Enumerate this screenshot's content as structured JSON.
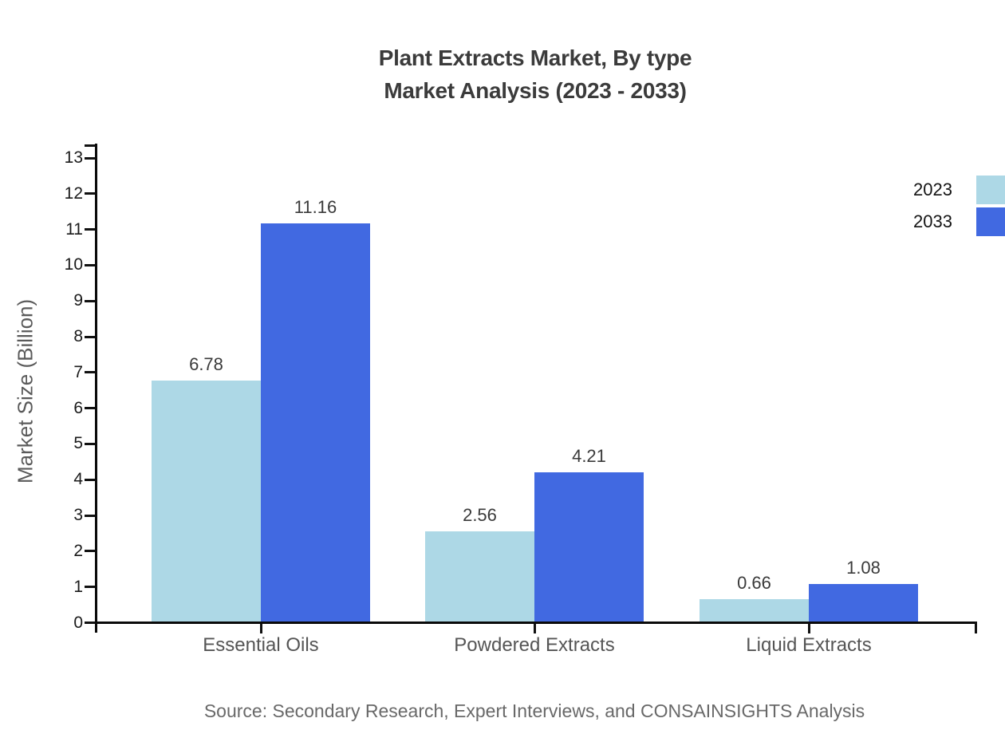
{
  "title": {
    "line1": "Plant Extracts Market, By type",
    "line2": "Market Analysis (2023 - 2033)"
  },
  "source_note": "Source: Secondary Research, Expert Interviews, and CONSAINSIGHTS Analysis",
  "chart_data": {
    "type": "bar",
    "title": "Plant Extracts Market, By type — Market Analysis (2023 - 2033)",
    "categories": [
      "Essential Oils",
      "Powdered Extracts",
      "Liquid Extracts"
    ],
    "series": [
      {
        "name": "2023",
        "color": "#ADD8E6",
        "values": [
          6.78,
          2.56,
          0.66
        ]
      },
      {
        "name": "2033",
        "color": "#4169E1",
        "values": [
          11.16,
          4.21,
          1.08
        ]
      }
    ],
    "xlabel": "",
    "ylabel": "Market Size (Billion)",
    "ylim": [
      0,
      13
    ],
    "yticks": [
      0,
      1,
      2,
      3,
      4,
      5,
      6,
      7,
      8,
      9,
      10,
      11,
      12,
      13
    ],
    "grid": false,
    "legend_position": "top-right",
    "value_labels": "shown above bars, two decimals"
  }
}
